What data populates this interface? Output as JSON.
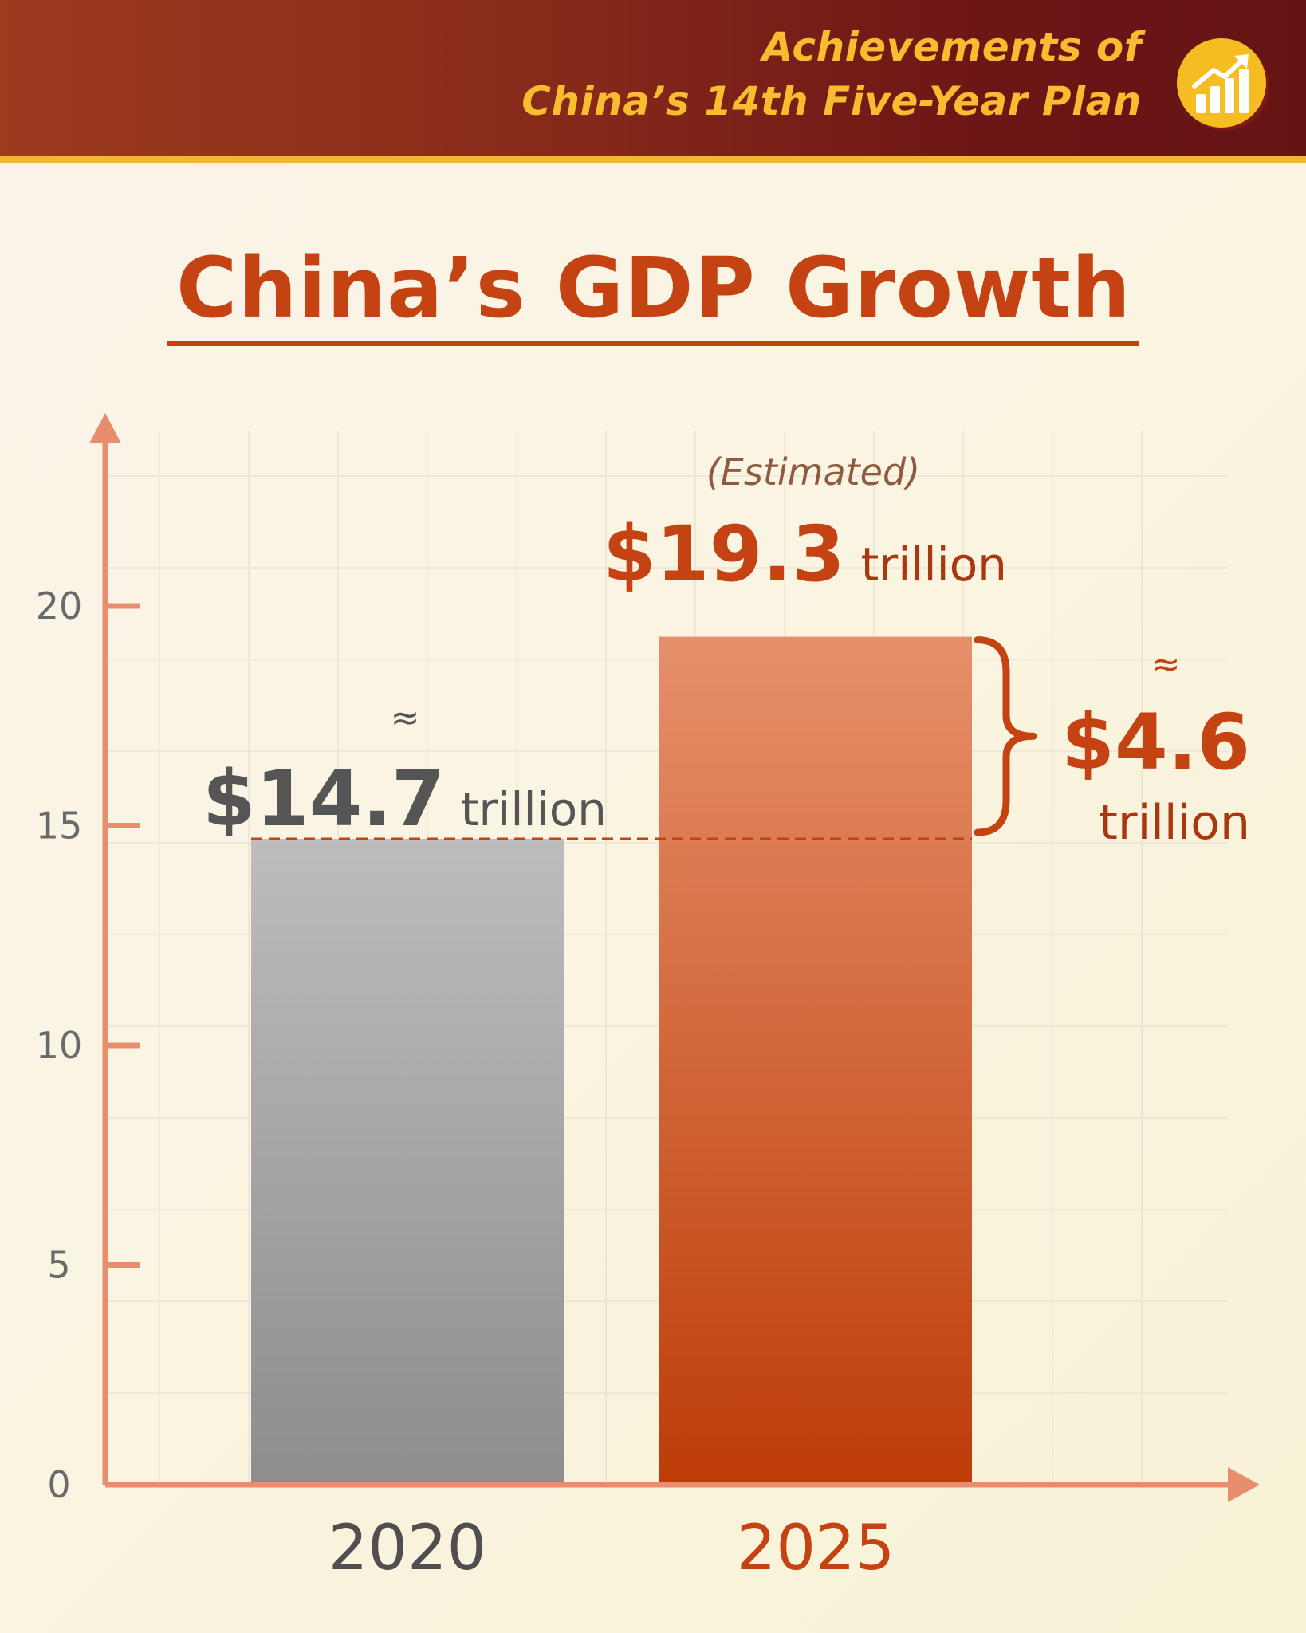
{
  "header": {
    "line1": "Achievements of",
    "line2": "China’s 14th Five-Year Plan",
    "badge_icon": "bar-chart-growth-icon"
  },
  "title": "China’s GDP Growth",
  "colors": {
    "accent": "#c54213",
    "axis": "#e88e6e",
    "bar_2020_top": "#bdbdbd",
    "bar_2020_bottom": "#8d8d8d",
    "bar_2025_top": "#e6906b",
    "bar_2025_bottom": "#bd3c08",
    "gray_text": "#555555"
  },
  "chart_data": {
    "type": "bar",
    "categories": [
      "2020",
      "2025"
    ],
    "values": [
      14.7,
      19.3
    ],
    "ylim": [
      0,
      20
    ],
    "yticks": [
      0,
      5,
      10,
      15,
      20
    ],
    "grid": true,
    "xlabel": "",
    "ylabel": "",
    "annotations": {
      "bar_2020": {
        "approx": "≈",
        "amount": "$14.7",
        "unit": "trillion"
      },
      "bar_2025": {
        "note": "(Estimated)",
        "amount": "$19.3",
        "unit": "trillion"
      },
      "difference": {
        "approx": "≈",
        "amount": "$4.6",
        "unit": "trillion"
      }
    }
  }
}
